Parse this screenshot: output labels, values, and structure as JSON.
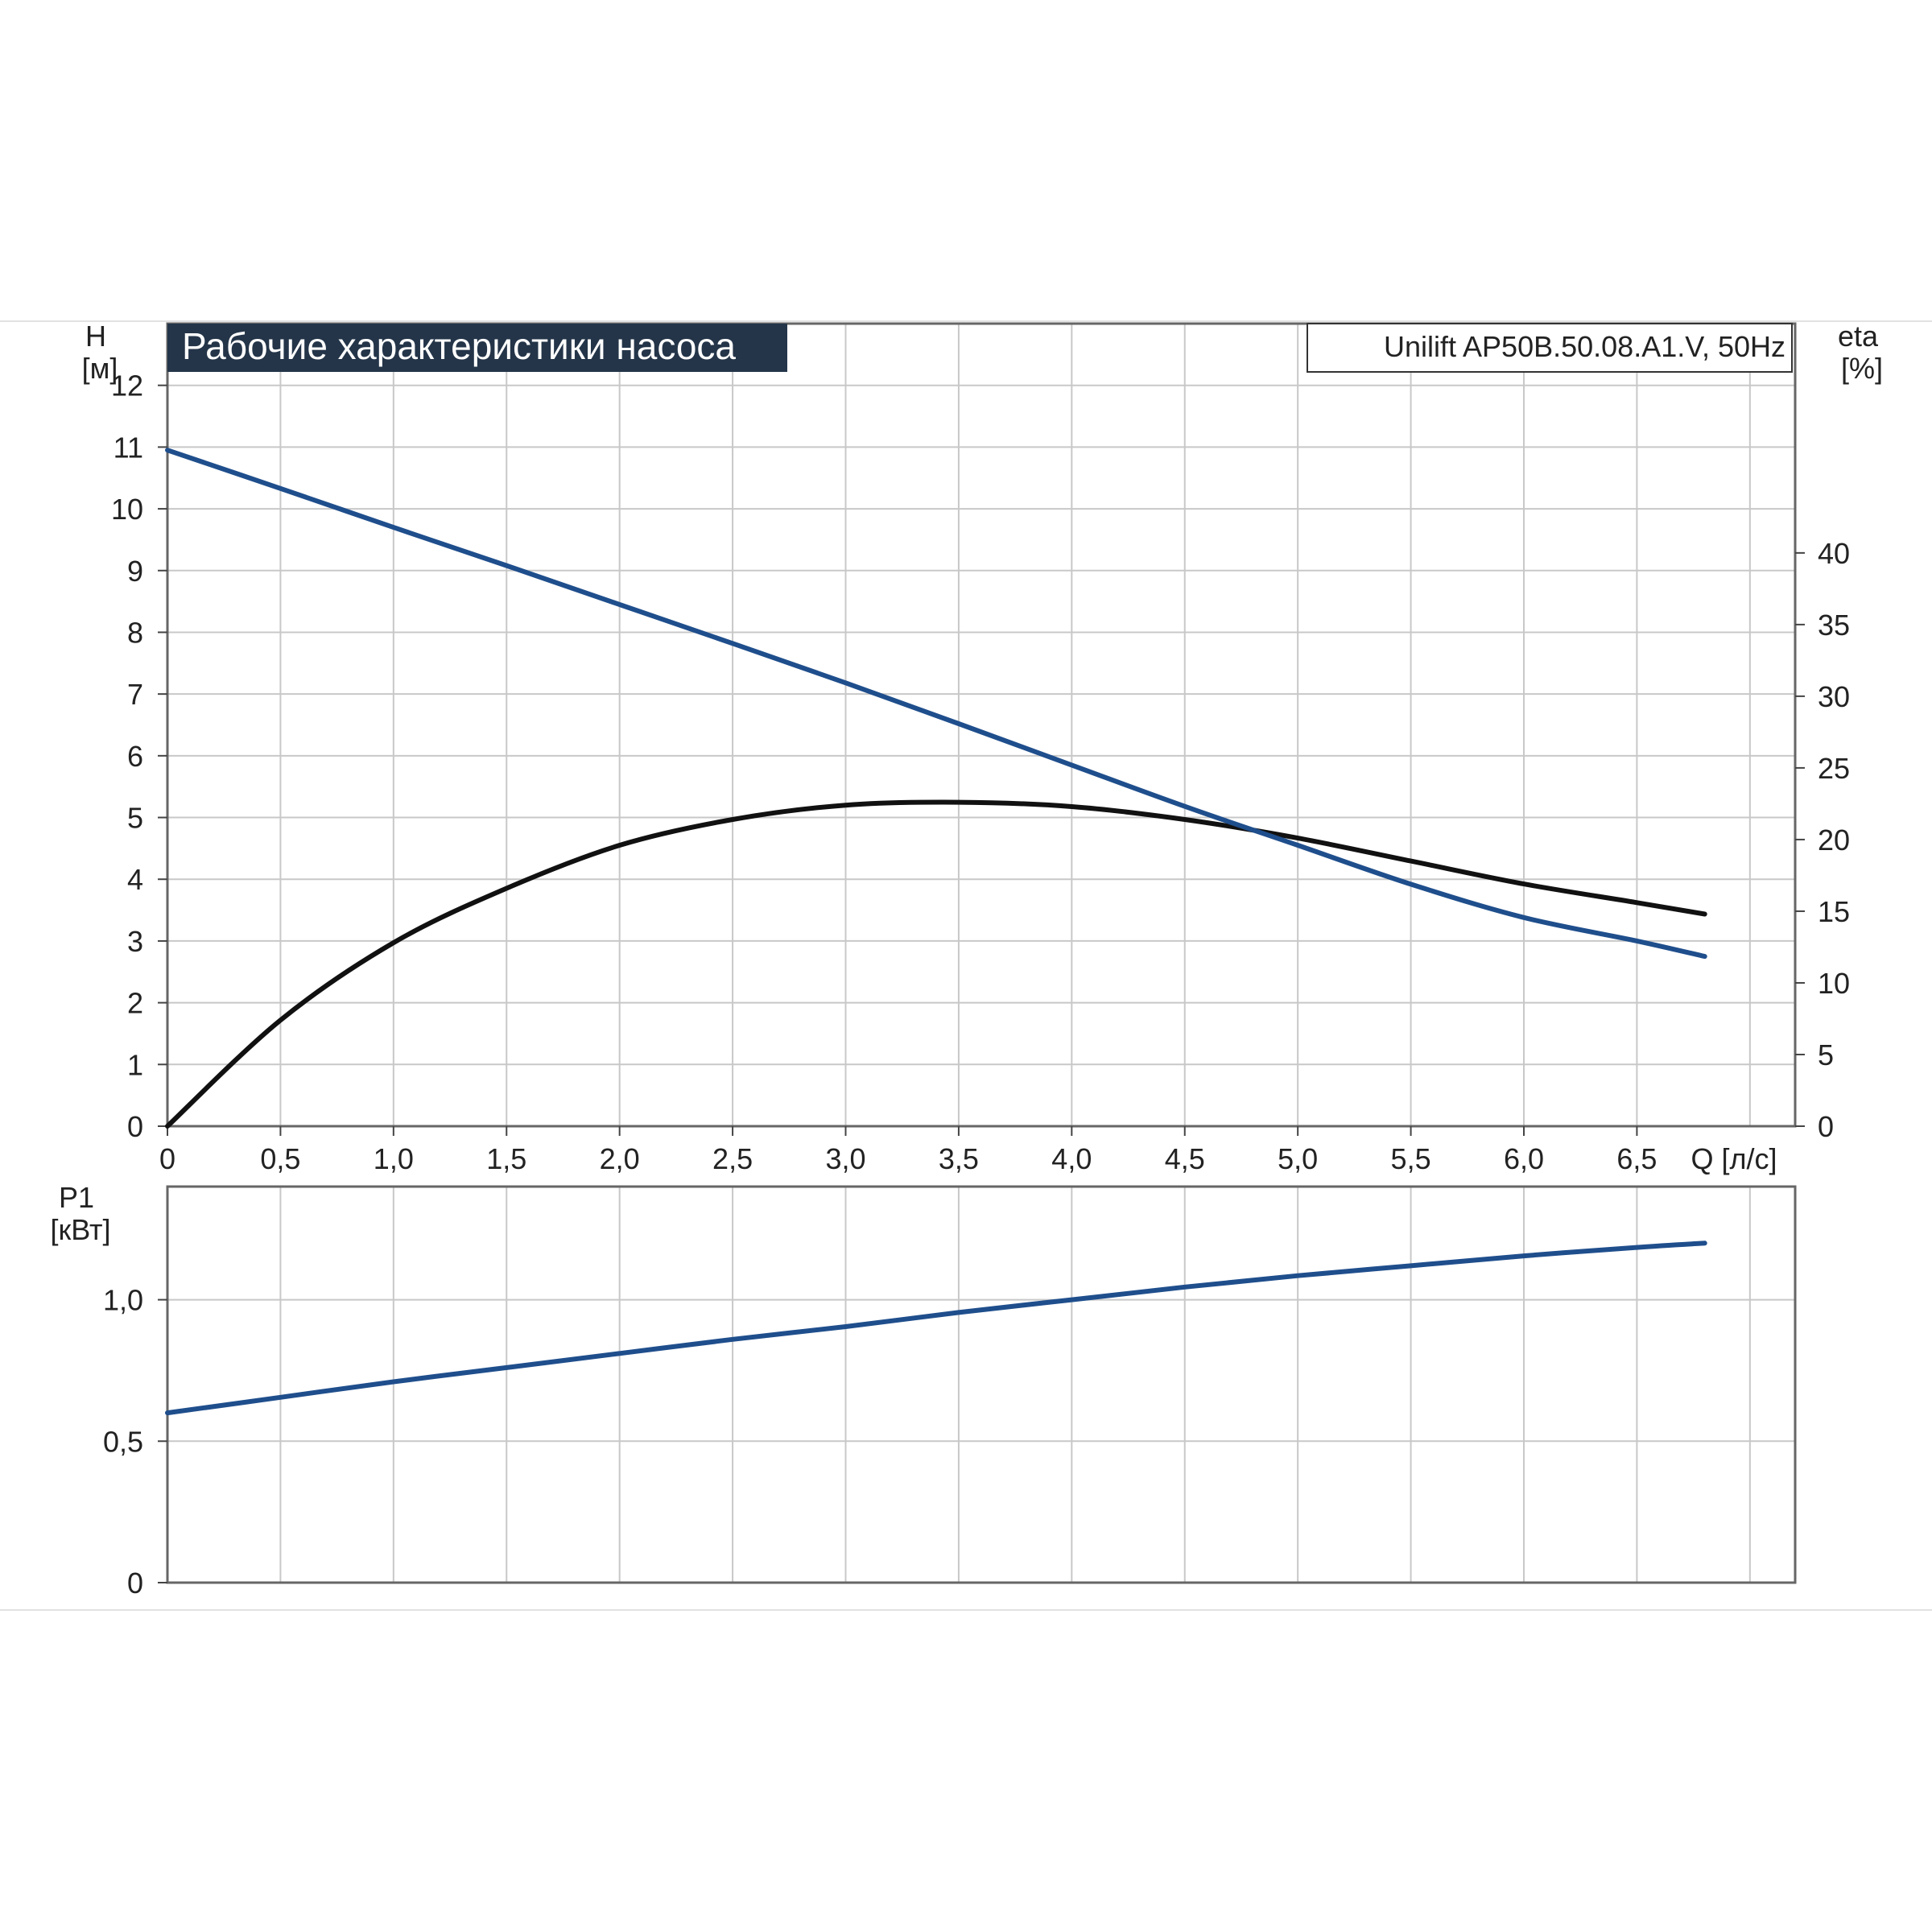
{
  "chart_data": [
    {
      "type": "line",
      "title": "Рабочие характеристики насоса",
      "subtitle": "Unilift AP50B.50.08.A1.V, 50Hz",
      "xlabel": "Q [л/с]",
      "ylabel": "H [м]",
      "y2label": "eta [%]",
      "ylabel_left_lines": [
        "H",
        "[м]"
      ],
      "ylabel_right_lines": [
        "eta",
        "[%]"
      ],
      "xlim": [
        0,
        7.2
      ],
      "ylim": [
        0,
        13
      ],
      "y2lim": [
        0,
        56
      ],
      "x_ticks": [
        0,
        0.5,
        1.0,
        1.5,
        2.0,
        2.5,
        3.0,
        3.5,
        4.0,
        4.5,
        5.0,
        5.5,
        6.0,
        6.5
      ],
      "x_tick_labels": [
        "0",
        "0,5",
        "1,0",
        "1,5",
        "2,0",
        "2,5",
        "3,0",
        "3,5",
        "4,0",
        "4,5",
        "5,0",
        "5,5",
        "6,0",
        "6,5"
      ],
      "y_ticks": [
        0,
        1,
        2,
        3,
        4,
        5,
        6,
        7,
        8,
        9,
        10,
        11,
        12
      ],
      "y_tick_labels": [
        "0",
        "1",
        "2",
        "3",
        "4",
        "5",
        "6",
        "7",
        "8",
        "9",
        "10",
        "11",
        "12"
      ],
      "y2_ticks": [
        0,
        5,
        10,
        15,
        20,
        25,
        30,
        35,
        40
      ],
      "y2_tick_labels": [
        "0",
        "5",
        "10",
        "15",
        "20",
        "25",
        "30",
        "35",
        "40"
      ],
      "grid": true,
      "series": [
        {
          "axis": "left",
          "color": "#1f4e8c",
          "x": [
            0,
            0.5,
            1.0,
            1.5,
            2.0,
            2.5,
            3.0,
            3.5,
            4.0,
            4.5,
            5.0,
            5.5,
            6.0,
            6.5,
            6.8
          ],
          "values": [
            10.95,
            10.33,
            9.7,
            9.08,
            8.45,
            7.82,
            7.18,
            6.52,
            5.85,
            5.18,
            4.55,
            3.92,
            3.38,
            3.0,
            2.75
          ]
        },
        {
          "axis": "right",
          "color": "#111111",
          "x": [
            0,
            0.5,
            1.0,
            1.5,
            2.0,
            2.5,
            3.0,
            3.5,
            4.0,
            4.5,
            5.0,
            5.5,
            6.0,
            6.5,
            6.8
          ],
          "values": [
            0,
            7.4,
            12.8,
            16.6,
            19.6,
            21.4,
            22.4,
            22.6,
            22.3,
            21.4,
            20.1,
            18.5,
            16.9,
            15.6,
            14.8
          ]
        }
      ]
    },
    {
      "type": "line",
      "xlabel": "",
      "ylabel": "P1 [кВт]",
      "ylabel_lines": [
        "P1",
        "[кВт]"
      ],
      "xlim": [
        0,
        7.2
      ],
      "ylim": [
        0,
        1.4
      ],
      "y_ticks": [
        0,
        0.5,
        1.0
      ],
      "y_tick_labels": [
        "0",
        "0,5",
        "1,0"
      ],
      "grid": true,
      "series": [
        {
          "color": "#1f4e8c",
          "x": [
            0,
            0.5,
            1.0,
            1.5,
            2.0,
            2.5,
            3.0,
            3.5,
            4.0,
            4.5,
            5.0,
            5.5,
            6.0,
            6.5,
            6.8
          ],
          "values": [
            0.6,
            0.655,
            0.71,
            0.76,
            0.81,
            0.86,
            0.905,
            0.955,
            1.0,
            1.045,
            1.085,
            1.12,
            1.155,
            1.185,
            1.2
          ]
        }
      ]
    }
  ]
}
